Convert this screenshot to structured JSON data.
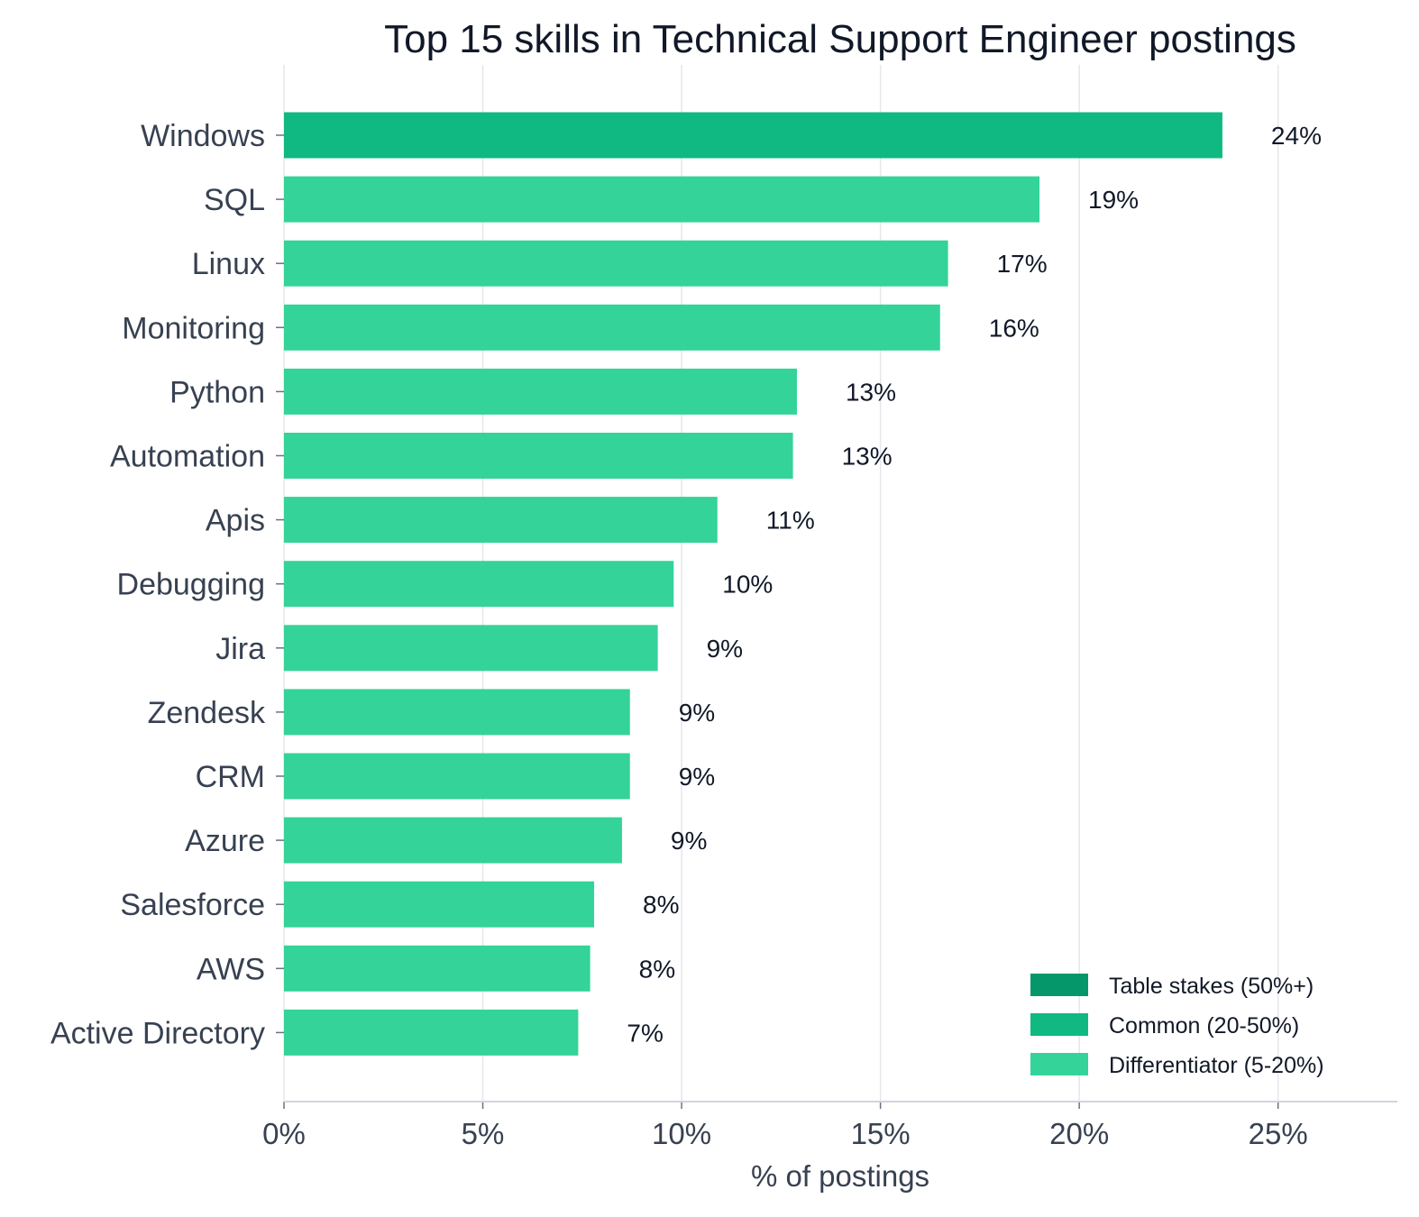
{
  "chart_data": {
    "type": "bar",
    "orientation": "horizontal",
    "title": "Top 15 skills in Technical Support Engineer postings",
    "xlabel": "% of postings",
    "ylabel": "",
    "xlim": [
      0,
      28
    ],
    "xticks": [
      0,
      5,
      10,
      15,
      20,
      25
    ],
    "xtick_labels": [
      "0%",
      "5%",
      "10%",
      "15%",
      "20%",
      "25%"
    ],
    "grid": "vertical",
    "legend_position": "bottom-right",
    "categories": [
      "Windows",
      "SQL",
      "Linux",
      "Monitoring",
      "Python",
      "Automation",
      "Apis",
      "Debugging",
      "Jira",
      "Zendesk",
      "CRM",
      "Azure",
      "Salesforce",
      "AWS",
      "Active Directory"
    ],
    "values": [
      23.6,
      19.0,
      16.7,
      16.5,
      12.9,
      12.8,
      10.9,
      9.8,
      9.4,
      8.7,
      8.7,
      8.5,
      7.8,
      7.7,
      7.4
    ],
    "value_labels": [
      "24%",
      "19%",
      "17%",
      "16%",
      "13%",
      "13%",
      "11%",
      "10%",
      "9%",
      "9%",
      "9%",
      "9%",
      "8%",
      "8%",
      "7%"
    ],
    "tiers": [
      "common",
      "differentiator",
      "differentiator",
      "differentiator",
      "differentiator",
      "differentiator",
      "differentiator",
      "differentiator",
      "differentiator",
      "differentiator",
      "differentiator",
      "differentiator",
      "differentiator",
      "differentiator",
      "differentiator"
    ],
    "legend": [
      {
        "key": "table_stakes",
        "label": "Table stakes (50%+)",
        "color": "#059669"
      },
      {
        "key": "common",
        "label": "Common (20-50%)",
        "color": "#10b981"
      },
      {
        "key": "differentiator",
        "label": "Differentiator (5-20%)",
        "color": "#34d399"
      }
    ],
    "colors": {
      "table_stakes": "#059669",
      "common": "#10b981",
      "differentiator": "#34d399",
      "grid": "#e5e7eb",
      "axis": "#d1d5db"
    }
  }
}
